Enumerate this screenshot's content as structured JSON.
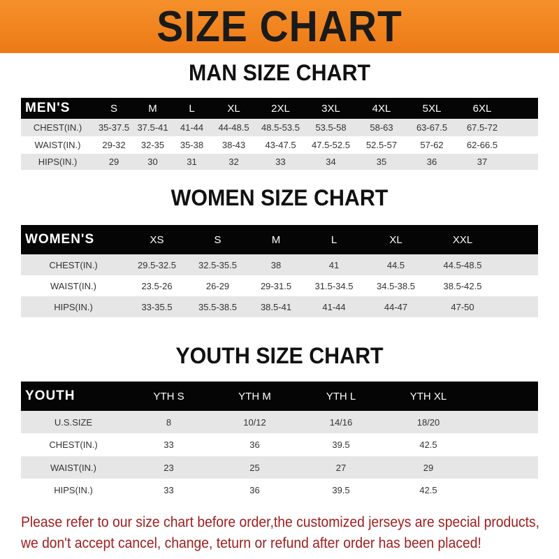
{
  "banner": {
    "title": "SIZE CHART",
    "color": "#ef8020"
  },
  "men": {
    "title": "MAN SIZE CHART",
    "header": [
      "MEN'S",
      "S",
      "M",
      "L",
      "XL",
      "2XL",
      "3XL",
      "4XL",
      "5XL",
      "6XL"
    ],
    "rows": [
      [
        "CHEST(IN.)",
        "35-37.5",
        "37.5-41",
        "41-44",
        "44-48.5",
        "48.5-53.5",
        "53.5-58",
        "58-63",
        "63-67.5",
        "67.5-72"
      ],
      [
        "WAIST(IN.)",
        "29-32",
        "32-35",
        "35-38",
        "38-43",
        "43-47.5",
        "47.5-52.5",
        "52.5-57",
        "57-62",
        "62-66.5"
      ],
      [
        "HIPS(IN.)",
        "29",
        "30",
        "31",
        "32",
        "33",
        "34",
        "35",
        "36",
        "37"
      ]
    ]
  },
  "women": {
    "title": "WOMEN SIZE CHART",
    "header": [
      "WOMEN'S",
      "XS",
      "S",
      "M",
      "L",
      "XL",
      "XXL"
    ],
    "rows": [
      [
        "CHEST(IN.)",
        "29.5-32.5",
        "32.5-35.5",
        "38",
        "41",
        "44.5",
        "44.5-48.5"
      ],
      [
        "WAIST(IN.)",
        "23.5-26",
        "26-29",
        "29-31.5",
        "31.5-34.5",
        "34.5-38.5",
        "38.5-42.5"
      ],
      [
        "HIPS(IN.)",
        "33-35.5",
        "35.5-38.5",
        "38.5-41",
        "41-44",
        "44-47",
        "47-50"
      ]
    ]
  },
  "youth": {
    "title": "YOUTH SIZE CHART",
    "header": [
      "YOUTH",
      "YTH S",
      "YTH M",
      "YTH L",
      "YTH XL"
    ],
    "rows": [
      [
        "U.S.SIZE",
        "8",
        "10/12",
        "14/16",
        "18/20"
      ],
      [
        "CHEST(IN.)",
        "33",
        "36",
        "39.5",
        "42.5"
      ],
      [
        "WAIST(IN.)",
        "23",
        "25",
        "27",
        "29"
      ],
      [
        "HIPS(IN.)",
        "33",
        "36",
        "39.5",
        "42.5"
      ]
    ]
  },
  "note": {
    "line1": "Please refer to our size chart before order,the customized jerseys are special products,",
    "line2": "we don't accept cancel, change, teturn or refund after order has been placed!",
    "color": "#a01e1e"
  }
}
